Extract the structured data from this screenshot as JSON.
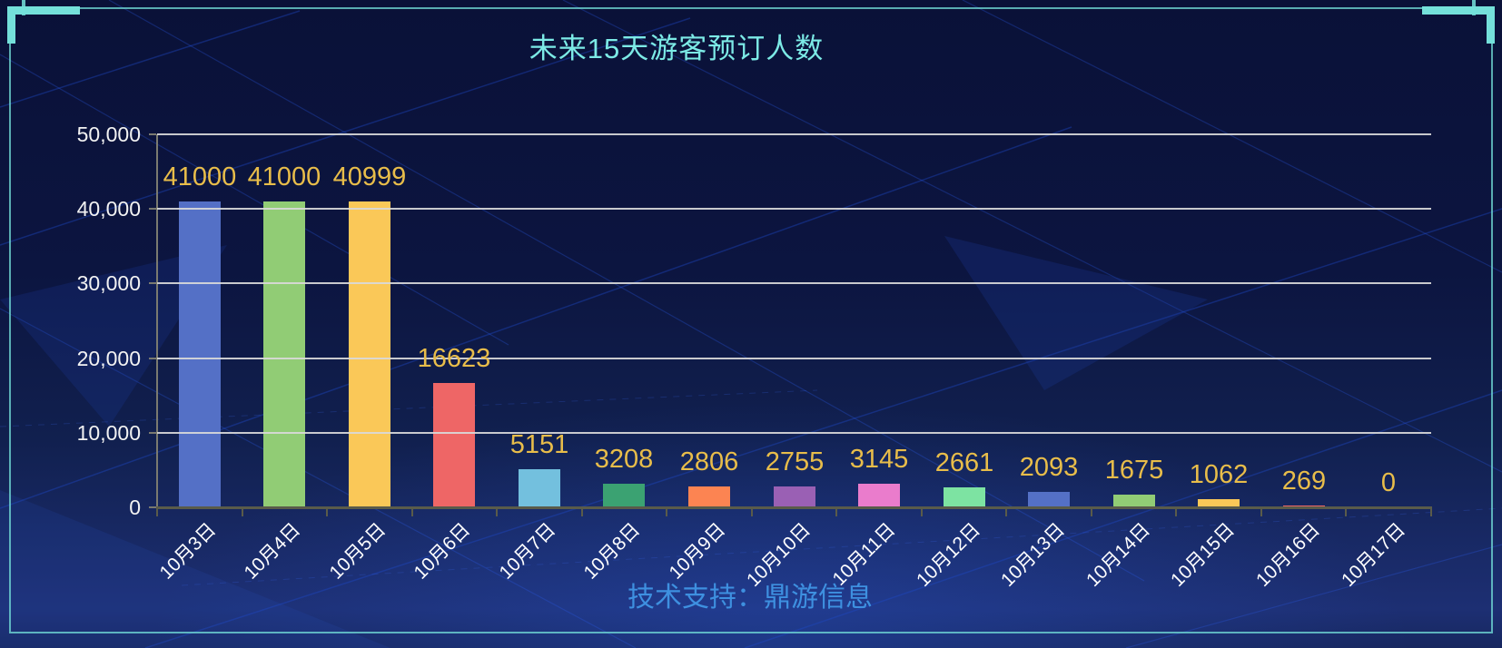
{
  "header": {
    "title": "未来15天游客预订人数"
  },
  "footer": {
    "text": "技术支持：鼎游信息"
  },
  "colors": {
    "accent": "#74e0da",
    "title": "#7ceae6",
    "footer": "#3e90e0",
    "value_label": "#e8bd4a",
    "axis_text": "#f2f2f2",
    "grid_line": "#d9d9d9",
    "x_axis_line": "#5a5b4a",
    "y_axis_line": "#7a7a70",
    "background_top": "#0a1138",
    "background_bottom": "#1d2f73"
  },
  "chart_data": {
    "type": "bar",
    "title": "未来15天游客预订人数",
    "categories": [
      "10月3日",
      "10月4日",
      "10月5日",
      "10月6日",
      "10月7日",
      "10月8日",
      "10月9日",
      "10月10日",
      "10月11日",
      "10月12日",
      "10月13日",
      "10月14日",
      "10月15日",
      "10月16日",
      "10月17日"
    ],
    "values": [
      41000,
      41000,
      40999,
      16623,
      5151,
      3208,
      2806,
      2755,
      3145,
      2661,
      2093,
      1675,
      1062,
      269,
      0
    ],
    "bar_colors": [
      "#5470c6",
      "#91cc75",
      "#fac858",
      "#ee6666",
      "#73c0de",
      "#3ba272",
      "#fc8452",
      "#9a60b4",
      "#ea7ccc",
      "#7de3a2",
      "#5470c6",
      "#91cc75",
      "#fac858",
      "#ee6666",
      "#5470c6"
    ],
    "value_labels_shown": true,
    "xlabel": "",
    "ylabel": "",
    "ylim": [
      0,
      50000
    ],
    "y_ticks": {
      "values": [
        0,
        10000,
        20000,
        30000,
        40000,
        50000
      ],
      "labels": [
        "0",
        "10,000",
        "20,000",
        "30,000",
        "40,000",
        "50,000"
      ]
    },
    "grid": true,
    "legend_position": "none",
    "x_label_rotate_deg": 45,
    "footer_note": "技术支持：鼎游信息"
  }
}
